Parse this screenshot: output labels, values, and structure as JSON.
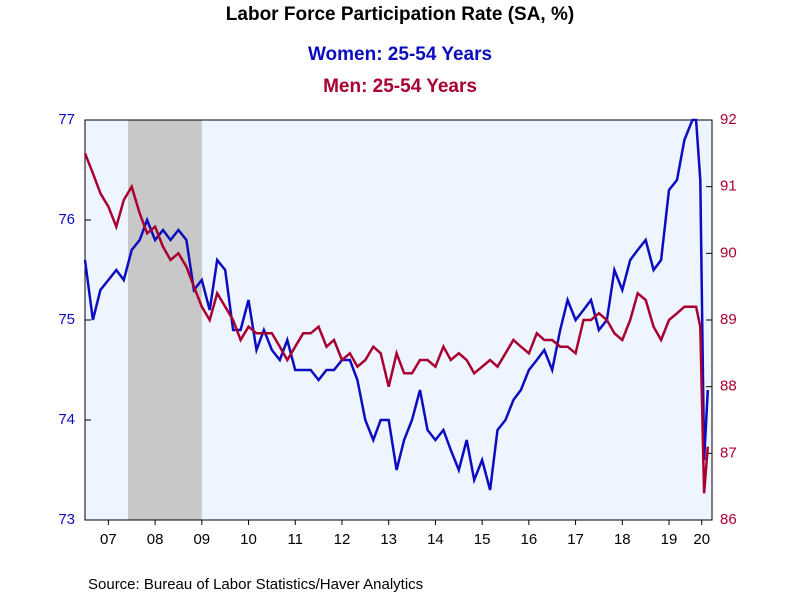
{
  "chart_data": {
    "type": "line",
    "title": "Labor Force Participation Rate (SA, %)",
    "source": "Source:  Bureau of Labor Statistics/Haver Analytics",
    "x": [
      2007,
      2007.17,
      2007.33,
      2007.5,
      2007.67,
      2007.83,
      2008,
      2008.17,
      2008.33,
      2008.5,
      2008.67,
      2008.83,
      2009,
      2009.17,
      2009.33,
      2009.5,
      2009.67,
      2009.83,
      2010,
      2010.17,
      2010.33,
      2010.5,
      2010.67,
      2010.83,
      2011,
      2011.17,
      2011.33,
      2011.5,
      2011.67,
      2011.83,
      2012,
      2012.17,
      2012.33,
      2012.5,
      2012.67,
      2012.83,
      2013,
      2013.17,
      2013.33,
      2013.5,
      2013.67,
      2013.83,
      2014,
      2014.17,
      2014.33,
      2014.5,
      2014.67,
      2014.83,
      2015,
      2015.17,
      2015.33,
      2015.5,
      2015.67,
      2015.83,
      2016,
      2016.17,
      2016.33,
      2016.5,
      2016.67,
      2016.83,
      2017,
      2017.17,
      2017.33,
      2017.5,
      2017.67,
      2017.83,
      2018,
      2018.17,
      2018.33,
      2018.5,
      2018.67,
      2018.83,
      2019,
      2019.17,
      2019.33,
      2019.5,
      2019.67,
      2019.83,
      2020,
      2020.08,
      2020.17,
      2020.25,
      2020.33
    ],
    "series": [
      {
        "name": "Women: 25-54 Years",
        "color": "#0c0cc0",
        "axis": "y",
        "values": [
          75.6,
          75.0,
          75.3,
          75.4,
          75.5,
          75.4,
          75.7,
          75.8,
          76.0,
          75.8,
          75.9,
          75.8,
          75.9,
          75.8,
          75.3,
          75.4,
          75.1,
          75.6,
          75.5,
          74.9,
          74.9,
          75.2,
          74.7,
          74.9,
          74.7,
          74.6,
          74.8,
          74.5,
          74.5,
          74.5,
          74.4,
          74.5,
          74.5,
          74.6,
          74.6,
          74.4,
          74.0,
          73.8,
          74.0,
          74.0,
          73.5,
          73.8,
          74.0,
          74.3,
          73.9,
          73.8,
          73.9,
          73.7,
          73.5,
          73.8,
          73.4,
          73.6,
          73.3,
          73.9,
          74.0,
          74.2,
          74.3,
          74.5,
          74.6,
          74.7,
          74.5,
          74.9,
          75.2,
          75.0,
          75.1,
          75.2,
          74.9,
          75.0,
          75.5,
          75.3,
          75.6,
          75.7,
          75.8,
          75.5,
          75.6,
          76.3,
          76.4,
          76.8,
          77.0,
          77.0,
          76.4,
          73.6,
          74.3
        ]
      },
      {
        "name": "Men: 25-54 Years",
        "color": "#a80030",
        "axis": "y2",
        "values": [
          91.5,
          91.2,
          90.9,
          90.7,
          90.4,
          90.8,
          91.0,
          90.6,
          90.3,
          90.4,
          90.1,
          89.9,
          90.0,
          89.8,
          89.5,
          89.2,
          89.0,
          89.4,
          89.2,
          89.0,
          88.7,
          88.9,
          88.8,
          88.8,
          88.8,
          88.6,
          88.4,
          88.6,
          88.8,
          88.8,
          88.9,
          88.6,
          88.7,
          88.4,
          88.5,
          88.3,
          88.4,
          88.6,
          88.5,
          88.0,
          88.5,
          88.2,
          88.2,
          88.4,
          88.4,
          88.3,
          88.6,
          88.4,
          88.5,
          88.4,
          88.2,
          88.3,
          88.4,
          88.3,
          88.5,
          88.7,
          88.6,
          88.5,
          88.8,
          88.7,
          88.7,
          88.6,
          88.6,
          88.5,
          89.0,
          89.0,
          89.1,
          89.0,
          88.8,
          88.7,
          89.0,
          89.4,
          89.3,
          88.9,
          88.7,
          89.0,
          89.1,
          89.2,
          89.2,
          89.2,
          88.9,
          86.4,
          87.1
        ]
      }
    ],
    "recession": [
      2007.92,
      2009.5
    ],
    "xlim": [
      2007,
      2020.42
    ],
    "xticks": [
      {
        "value": 2007.5,
        "label": "07"
      },
      {
        "value": 2008.5,
        "label": "08"
      },
      {
        "value": 2009.5,
        "label": "09"
      },
      {
        "value": 2010.5,
        "label": "10"
      },
      {
        "value": 2011.5,
        "label": "11"
      },
      {
        "value": 2012.5,
        "label": "12"
      },
      {
        "value": 2013.5,
        "label": "13"
      },
      {
        "value": 2014.5,
        "label": "14"
      },
      {
        "value": 2015.5,
        "label": "15"
      },
      {
        "value": 2016.5,
        "label": "16"
      },
      {
        "value": 2017.5,
        "label": "17"
      },
      {
        "value": 2018.5,
        "label": "18"
      },
      {
        "value": 2019.5,
        "label": "19"
      },
      {
        "value": 2020.2,
        "label": "20"
      }
    ],
    "ylim": [
      73,
      77
    ],
    "yticks": [
      73,
      74,
      75,
      76,
      77
    ],
    "y2lim": [
      86,
      92
    ],
    "y2ticks": [
      86,
      87,
      88,
      89,
      90,
      91,
      92
    ]
  }
}
